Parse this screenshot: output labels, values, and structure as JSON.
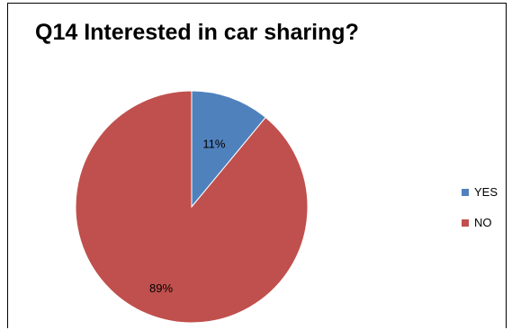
{
  "chart_data": {
    "type": "pie",
    "title": "Q14 Interested in car sharing?",
    "categories": [
      "YES",
      "NO"
    ],
    "values": [
      11,
      89
    ],
    "data_labels": [
      "11%",
      "89%"
    ],
    "colors": [
      "#4f81bd",
      "#c0504d"
    ],
    "legend_placement": "right"
  }
}
